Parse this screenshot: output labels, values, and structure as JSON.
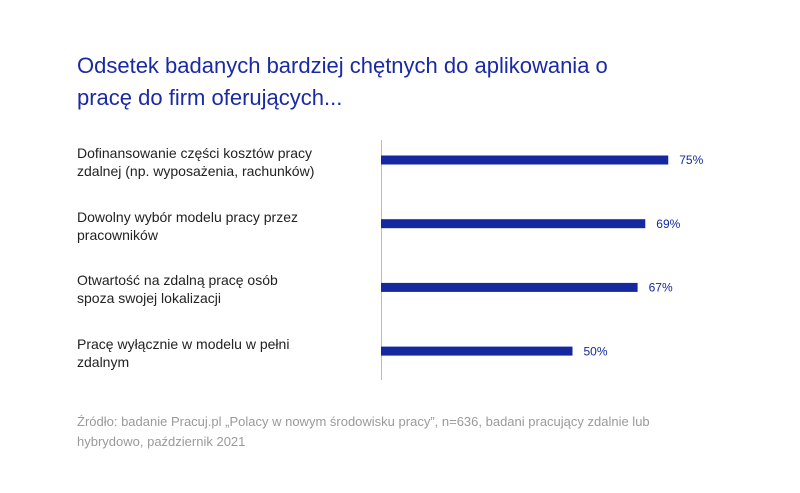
{
  "chart_data": {
    "type": "barh",
    "title": "Odsetek badanych bardziej chętnych do aplikowania o\npracę do firm oferujących...",
    "categories": [
      "Dofinansowanie części kosztów pracy\nzdalnej (np. wyposażenia, rachunków)",
      "Dowolny wybór modelu pracy przez\npracowników",
      "Otwartość na zdalną pracę osób\nspoza swojej lokalizacji",
      "Pracę wyłącznie w modelu w pełni\nzdalnym"
    ],
    "values": [
      75,
      69,
      67,
      50
    ],
    "value_labels": [
      "75%",
      "69%",
      "67%",
      "50%"
    ],
    "color": "#1428a0",
    "xlim": [
      0,
      100
    ],
    "source": "Źródło: badanie Pracuj.pl „Polacy w nowym środowisku pracy”, n=636, badani pracujący zdalnie lub\nhybrydowo, październik 2021"
  }
}
